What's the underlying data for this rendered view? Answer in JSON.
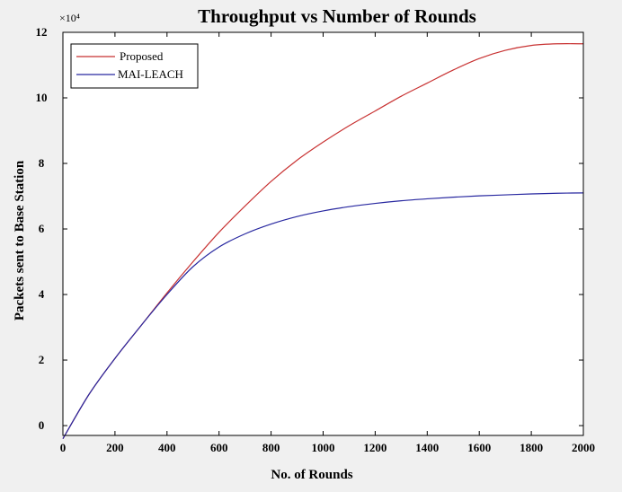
{
  "chart_data": {
    "type": "line",
    "title": "Throughput vs Number of Rounds",
    "xlabel": "No. of Rounds",
    "ylabel": "Packets sent to Base Station",
    "y_multiplier_label": "×10⁴",
    "xlim": [
      0,
      2000
    ],
    "ylim": [
      -0.3,
      12
    ],
    "x_ticks": [
      0,
      200,
      400,
      600,
      800,
      1000,
      1200,
      1400,
      1600,
      1800,
      2000
    ],
    "y_ticks": [
      0,
      2,
      4,
      6,
      8,
      10,
      12
    ],
    "grid": false,
    "legend_position": "top-left",
    "x": [
      0,
      100,
      200,
      300,
      400,
      500,
      600,
      700,
      800,
      900,
      1000,
      1100,
      1200,
      1300,
      1400,
      1500,
      1600,
      1700,
      1800,
      1900,
      2000
    ],
    "series": [
      {
        "name": "Proposed",
        "color": "#c83232",
        "values": [
          -0.4,
          0.95,
          2.05,
          3.05,
          4.05,
          5.0,
          5.9,
          6.7,
          7.45,
          8.1,
          8.65,
          9.15,
          9.6,
          10.05,
          10.45,
          10.85,
          11.2,
          11.45,
          11.6,
          11.65,
          11.65
        ]
      },
      {
        "name": "MAI-LEACH",
        "color": "#2828a0",
        "values": [
          -0.4,
          0.95,
          2.05,
          3.05,
          4.0,
          4.85,
          5.45,
          5.85,
          6.15,
          6.38,
          6.55,
          6.68,
          6.78,
          6.86,
          6.92,
          6.97,
          7.01,
          7.04,
          7.07,
          7.09,
          7.1
        ]
      }
    ]
  }
}
